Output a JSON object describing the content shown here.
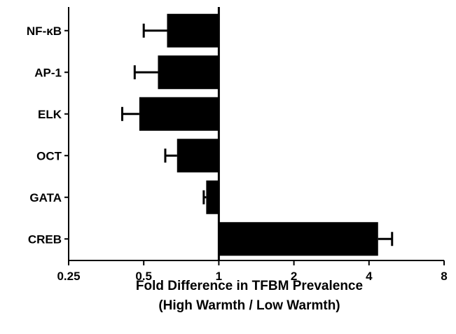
{
  "chart_data": {
    "type": "bar",
    "orientation": "horizontal",
    "categories": [
      "NF-κB",
      "AP-1",
      "ELK",
      "OCT",
      "GATA",
      "CREB"
    ],
    "values": [
      0.62,
      0.57,
      0.48,
      0.68,
      0.89,
      4.35
    ],
    "error_values": [
      0.5,
      0.46,
      0.41,
      0.61,
      0.87,
      4.95
    ],
    "x_scale": "log2",
    "xlim": [
      0.25,
      8
    ],
    "x_ticks": [
      "0.25",
      "0.5",
      "1",
      "2",
      "4",
      "8"
    ],
    "xlabel_line1": "Fold Difference in TFBM Prevalence",
    "xlabel_line2": "(High Warmth / Low Warmth)",
    "baseline": 1,
    "colors": {
      "bar": "#000000",
      "axis": "#000000"
    }
  }
}
